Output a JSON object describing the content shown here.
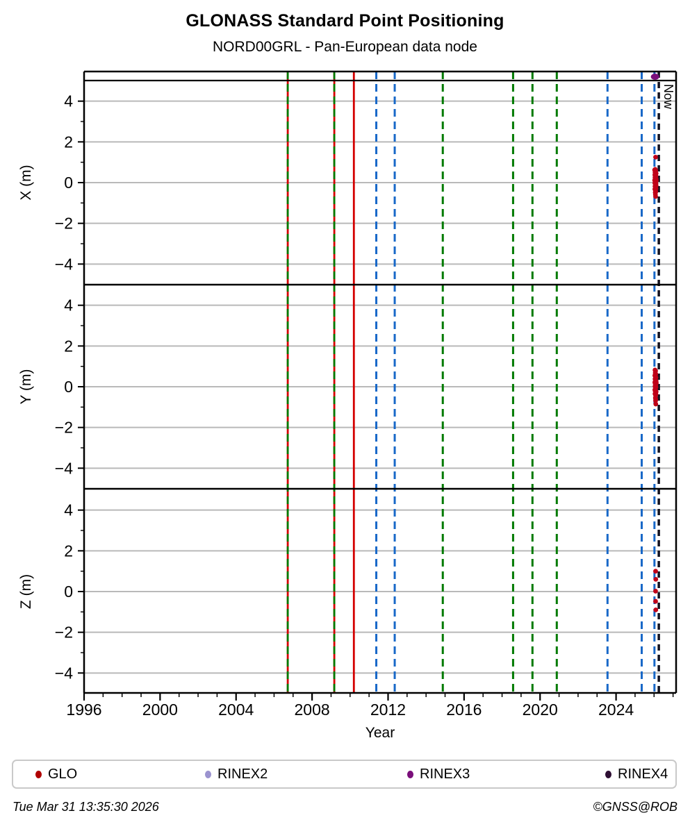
{
  "header": {
    "title": "GLONASS Standard Point Positioning",
    "subtitle": "NORD00GRL - Pan-European data node"
  },
  "footer": {
    "timestamp": "Tue Mar 31 13:35:30 2026",
    "copyright": "©GNSS@ROB"
  },
  "legend": {
    "items": [
      {
        "label": "GLO",
        "color": "#b00000"
      },
      {
        "label": "RINEX2",
        "color": "#9b93cf"
      },
      {
        "label": "RINEX3",
        "color": "#7a0e7a"
      },
      {
        "label": "RINEX4",
        "color": "#2d0e33"
      }
    ]
  },
  "chart_data": {
    "type": "scatter",
    "title": "GLONASS Standard Point Positioning",
    "subtitle": "NORD00GRL - Pan-European data node",
    "xlabel": "Year",
    "x_axis": {
      "min": 1996,
      "max": 2027.2,
      "major_ticks": [
        1996,
        2000,
        2004,
        2008,
        2012,
        2016,
        2020,
        2024
      ],
      "minor_tick_interval": 1
    },
    "grid": "horizontal-only",
    "grid_color": "#b9b9b9",
    "point_color": "#c00018",
    "panels": [
      {
        "ylabel": "X (m)",
        "ylim": [
          -5,
          5
        ],
        "yticks": [
          -4,
          -2,
          0,
          2,
          4
        ],
        "series": [
          {
            "name": "GLO",
            "points": [
              [
                2026.08,
                1.25
              ],
              [
                2026.03,
                0.62
              ],
              [
                2026.06,
                0.65
              ],
              [
                2026.09,
                0.6
              ],
              [
                2026.05,
                0.5
              ],
              [
                2026.08,
                0.52
              ],
              [
                2026.11,
                0.45
              ],
              [
                2026.04,
                0.38
              ],
              [
                2026.07,
                0.4
              ],
              [
                2026.1,
                0.32
              ],
              [
                2026.05,
                0.25
              ],
              [
                2026.08,
                0.22
              ],
              [
                2026.11,
                0.18
              ],
              [
                2026.03,
                0.12
              ],
              [
                2026.06,
                0.08
              ],
              [
                2026.09,
                0.05
              ],
              [
                2026.12,
                0.1
              ],
              [
                2026.04,
                -0.02
              ],
              [
                2026.07,
                -0.08
              ],
              [
                2026.1,
                -0.05
              ],
              [
                2026.05,
                -0.18
              ],
              [
                2026.08,
                -0.22
              ],
              [
                2026.11,
                -0.15
              ],
              [
                2026.04,
                -0.32
              ],
              [
                2026.07,
                -0.38
              ],
              [
                2026.1,
                -0.3
              ],
              [
                2026.06,
                -0.48
              ],
              [
                2026.09,
                -0.45
              ],
              [
                2026.07,
                -0.58
              ],
              [
                2026.08,
                -0.68
              ]
            ]
          }
        ]
      },
      {
        "ylabel": "Y (m)",
        "ylim": [
          -5,
          5
        ],
        "yticks": [
          -4,
          -2,
          0,
          2,
          4
        ],
        "series": [
          {
            "name": "GLO",
            "points": [
              [
                2026.05,
                0.82
              ],
              [
                2026.08,
                0.78
              ],
              [
                2026.06,
                0.68
              ],
              [
                2026.09,
                0.62
              ],
              [
                2026.04,
                0.55
              ],
              [
                2026.07,
                0.5
              ],
              [
                2026.1,
                0.45
              ],
              [
                2026.05,
                0.38
              ],
              [
                2026.08,
                0.32
              ],
              [
                2026.11,
                0.28
              ],
              [
                2026.04,
                0.22
              ],
              [
                2026.06,
                0.15
              ],
              [
                2026.09,
                0.1
              ],
              [
                2026.12,
                0.18
              ],
              [
                2026.05,
                0.02
              ],
              [
                2026.07,
                -0.05
              ],
              [
                2026.1,
                -0.02
              ],
              [
                2026.04,
                -0.15
              ],
              [
                2026.06,
                -0.22
              ],
              [
                2026.09,
                -0.18
              ],
              [
                2026.11,
                -0.25
              ],
              [
                2026.05,
                -0.35
              ],
              [
                2026.08,
                -0.42
              ],
              [
                2026.1,
                -0.38
              ],
              [
                2026.07,
                -0.55
              ],
              [
                2026.09,
                -0.62
              ],
              [
                2026.08,
                -0.68
              ],
              [
                2026.09,
                -0.85
              ]
            ]
          }
        ]
      },
      {
        "ylabel": "Z (m)",
        "ylim": [
          -5,
          5
        ],
        "yticks": [
          -4,
          -2,
          0,
          2,
          4
        ],
        "series": [
          {
            "name": "GLO",
            "points": [
              [
                2026.08,
                1.0
              ],
              [
                2026.09,
                0.6
              ],
              [
                2026.08,
                0.02
              ],
              [
                2026.08,
                -0.48
              ],
              [
                2026.09,
                -0.9
              ]
            ]
          }
        ]
      }
    ],
    "vertical_lines": [
      {
        "year": 2006.72,
        "color": "#d40000",
        "style": "solid",
        "width": 2.8
      },
      {
        "year": 2006.72,
        "color": "#007a00",
        "style": "dashed",
        "width": 2.8
      },
      {
        "year": 2009.17,
        "color": "#d40000",
        "style": "solid",
        "width": 2.8
      },
      {
        "year": 2009.17,
        "color": "#007a00",
        "style": "dashed",
        "width": 2.8
      },
      {
        "year": 2010.2,
        "color": "#d40000",
        "style": "solid",
        "width": 2.8
      },
      {
        "year": 2011.38,
        "color": "#1868c8",
        "style": "dashed",
        "width": 3
      },
      {
        "year": 2012.35,
        "color": "#1868c8",
        "style": "dashed",
        "width": 3
      },
      {
        "year": 2014.88,
        "color": "#007a00",
        "style": "dashed",
        "width": 3
      },
      {
        "year": 2018.58,
        "color": "#007a00",
        "style": "dashed",
        "width": 3
      },
      {
        "year": 2019.6,
        "color": "#007a00",
        "style": "dashed",
        "width": 3
      },
      {
        "year": 2020.88,
        "color": "#007a00",
        "style": "dashed",
        "width": 3
      },
      {
        "year": 2023.55,
        "color": "#1868c8",
        "style": "dashed",
        "width": 3
      },
      {
        "year": 2025.35,
        "color": "#1868c8",
        "style": "dashed",
        "width": 3
      },
      {
        "year": 2026.02,
        "color": "#1868c8",
        "style": "dashed",
        "width": 3
      }
    ],
    "now_marker": {
      "year": 2026.25,
      "label": "Now",
      "color": "#12121f",
      "style": "dashed",
      "width": 3.5
    },
    "top_markers": [
      {
        "type": "RINEX3",
        "year": 2026.05,
        "color": "#7a0e7a"
      }
    ]
  }
}
